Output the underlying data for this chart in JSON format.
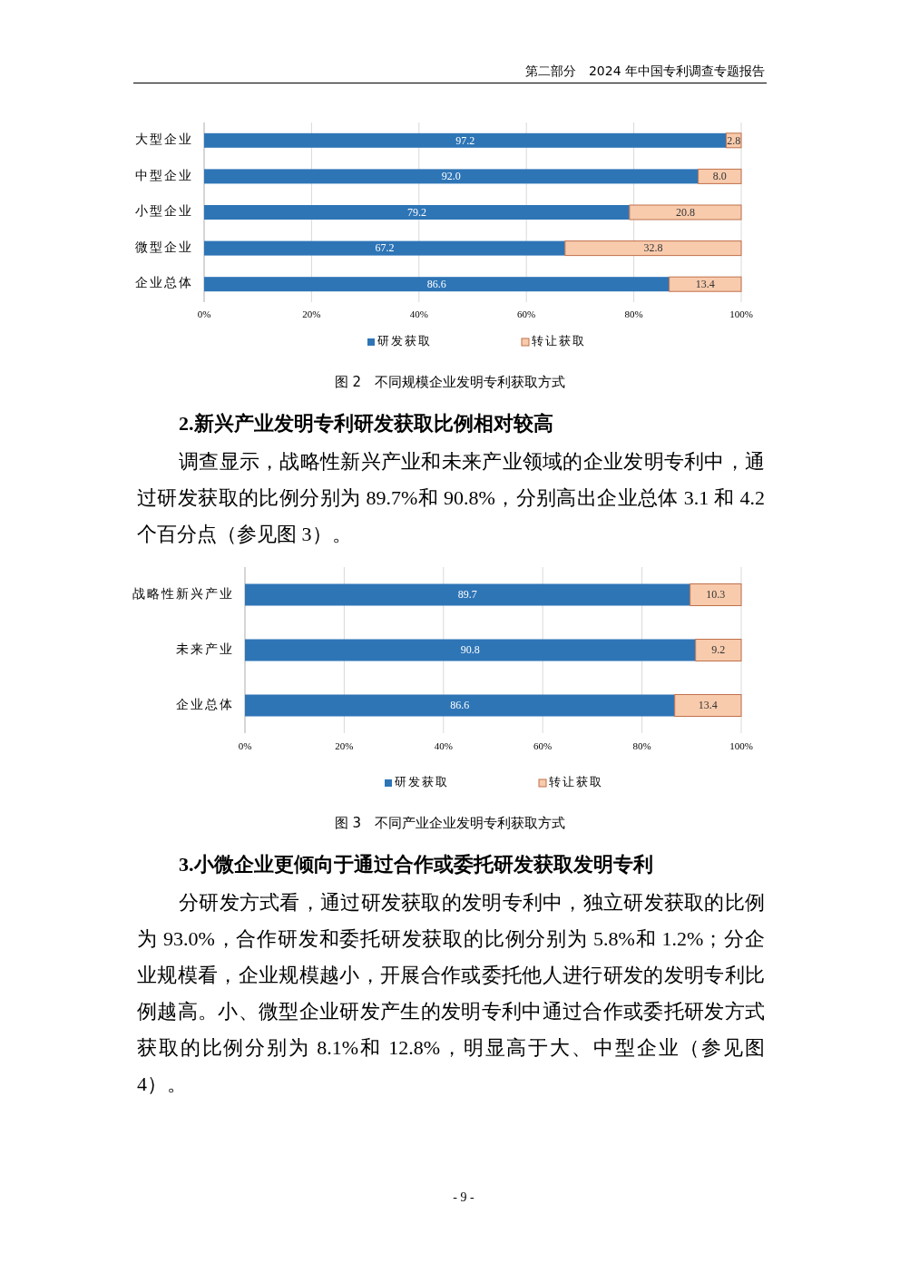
{
  "chart_data": [
    {
      "type": "bar",
      "orientation": "horizontal",
      "stacked": true,
      "title": "图 2　不同规模企业发明专利获取方式",
      "categories": [
        "大型企业",
        "中型企业",
        "小型企业",
        "微型企业",
        "企业总体"
      ],
      "series": [
        {
          "name": "研发获取",
          "color": "#2e75b6",
          "values": [
            97.2,
            92.0,
            79.2,
            67.2,
            86.6
          ],
          "value_labels": [
            "97.2",
            "92.0",
            "79.2",
            "67.2",
            "86.6"
          ]
        },
        {
          "name": "转让获取",
          "color": "#f8cbad",
          "values": [
            2.8,
            8.0,
            20.8,
            32.8,
            13.4
          ],
          "value_labels": [
            "2.8",
            "8.0",
            "20.8",
            "32.8",
            "13.4"
          ]
        }
      ],
      "xlim": [
        0,
        100
      ],
      "xticks": [
        {
          "value": 0,
          "label": "0%"
        },
        {
          "value": 20,
          "label": "20%"
        },
        {
          "value": 40,
          "label": "40%"
        },
        {
          "value": 60,
          "label": "60%"
        },
        {
          "value": 80,
          "label": "80%"
        },
        {
          "value": 100,
          "label": "100%"
        }
      ],
      "grid": "x",
      "legend": "bottom",
      "marker": "square",
      "annotations": [
        "第二部分　2024 年中国专利调查专题报告"
      ]
    },
    {
      "type": "bar",
      "orientation": "horizontal",
      "stacked": true,
      "title": "图 3　不同产业企业发明专利获取方式",
      "categories": [
        "战略性新兴产业",
        "未来产业",
        "企业总体"
      ],
      "series": [
        {
          "name": "研发获取",
          "color": "#2e75b6",
          "values": [
            89.7,
            90.8,
            86.6
          ],
          "value_labels": [
            "89.7",
            "90.8",
            "86.6"
          ]
        },
        {
          "name": "转让获取",
          "color": "#f8cbad",
          "values": [
            10.3,
            9.2,
            13.4
          ],
          "value_labels": [
            "10.3",
            "9.2",
            "13.4"
          ]
        }
      ],
      "xlim": [
        0,
        100
      ],
      "xticks": [
        {
          "value": 0,
          "label": "0%"
        },
        {
          "value": 20,
          "label": "20%"
        },
        {
          "value": 40,
          "label": "40%"
        },
        {
          "value": 60,
          "label": "60%"
        },
        {
          "value": 80,
          "label": "80%"
        },
        {
          "value": 100,
          "label": "100%"
        }
      ],
      "grid": "x",
      "legend": "bottom",
      "marker": "square",
      "annotations": [
        "2.新兴产业发明专利研发获取比例相对较高",
        "调查显示，战略性新兴产业和未来产业领域的企业发明专利中，通过研发获取的比例分别为 89.7%和 90.8%，分别高出企业总体 3.1 和 4.2 个百分点（参见图 3）。",
        "3.小微企业更倾向于通过合作或委托研发获取发明专利",
        "分研发方式看，通过研发获取的发明专利中，独立研发获取的比例为 93.0%，合作研发和委托研发获取的比例分别为 5.8%和 1.2%；分企业规模看，企业规模越小，开展合作或委托他人进行研发的发明专利比例越高。小、微型企业研发产生的发明专利中通过合作或委托研发方式获取的比例分别为 8.1%和 12.8%，明显高于大、中型企业（参见图 4）。",
        "- 9 -"
      ]
    }
  ]
}
